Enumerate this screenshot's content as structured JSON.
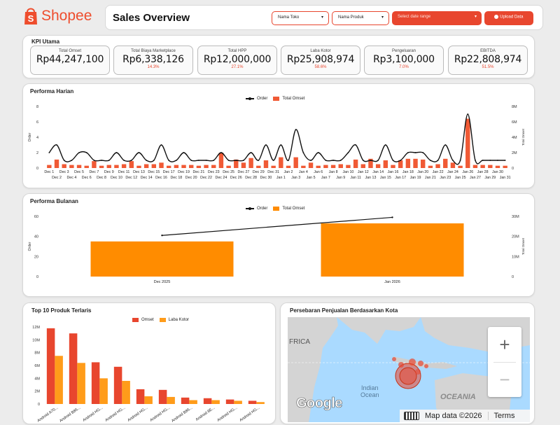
{
  "header": {
    "brand": "Shopee",
    "title": "Sales Overview",
    "filters": {
      "store": "Nama Toko",
      "product": "Nama Produk",
      "date": "Select date range",
      "upload": "Upload Data"
    },
    "colors": {
      "brand": "#ee4d2d",
      "accent": "#f05a35",
      "orange": "#ff8c00"
    }
  },
  "kpi": {
    "title": "KPI Utama",
    "items": [
      {
        "label": "Total Omset",
        "value": "Rp44,247,100",
        "pct": ""
      },
      {
        "label": "Total Biaya Marketplace",
        "value": "Rp6,338,126",
        "pct": "14.3%"
      },
      {
        "label": "Total HPP",
        "value": "Rp12,000,000",
        "pct": "27.1%"
      },
      {
        "label": "Laba Kotor",
        "value": "Rp25,908,974",
        "pct": "58.6%"
      },
      {
        "label": "Pengeluaran",
        "value": "Rp3,100,000",
        "pct": "7.0%"
      },
      {
        "label": "EBITDA",
        "value": "Rp22,808,974",
        "pct": "51.5%"
      }
    ]
  },
  "harian": {
    "title": "Performa Harian",
    "legend_order": "Order",
    "legend_omset": "Total Omset",
    "ylabel": "Order",
    "y2label": "Total Omset"
  },
  "bulanan": {
    "title": "Performa Bulanan",
    "legend_order": "Order",
    "legend_omset": "Total Omset",
    "ylabel": "Order",
    "y2label": "Total Omset"
  },
  "top10": {
    "title": "Top 10 Produk Terlaris",
    "legend_omset": "Omset",
    "legend_laba": "Laba Kotor"
  },
  "map": {
    "title": "Persebaran Penjualan Berdasarkan Kota",
    "labels": {
      "africa": "FRICA",
      "ocean": "Indian\nOcean",
      "oceania": "OCEANIA"
    },
    "google": "Google",
    "attribution": "Map data ©2026",
    "terms": "Terms",
    "zoom_in": "+",
    "zoom_out": "−"
  },
  "chart_data": [
    {
      "type": "bar",
      "title": "Performa Harian",
      "ylabel": "Order",
      "y2label": "Total Omset",
      "ylim": [
        0,
        8
      ],
      "y2lim": [
        0,
        8000000
      ],
      "yticks": [
        "0",
        "2",
        "4",
        "6",
        "8"
      ],
      "y2ticks": [
        "0",
        "2M",
        "4M",
        "6M",
        "8M"
      ],
      "categories": [
        "Dec 1",
        "Dec 2",
        "Dec 3",
        "Dec 4",
        "Dec 5",
        "Dec 6",
        "Dec 7",
        "Dec 8",
        "Dec 9",
        "Dec 10",
        "Dec 11",
        "Dec 12",
        "Dec 13",
        "Dec 14",
        "Dec 15",
        "Dec 16",
        "Dec 17",
        "Dec 18",
        "Dec 19",
        "Dec 20",
        "Dec 21",
        "Dec 22",
        "Dec 23",
        "Dec 24",
        "Dec 25",
        "Dec 26",
        "Dec 27",
        "Dec 28",
        "Dec 29",
        "Dec 30",
        "Dec 31",
        "Jan 1",
        "Jan 2",
        "Jan 3",
        "Jan 4",
        "Jan 5",
        "Jan 6",
        "Jan 7",
        "Jan 8",
        "Jan 9",
        "Jan 10",
        "Jan 11",
        "Jan 12",
        "Jan 13",
        "Jan 14",
        "Jan 15",
        "Jan 16",
        "Jan 17",
        "Jan 18",
        "Jan 19",
        "Jan 20",
        "Jan 21",
        "Jan 22",
        "Jan 23",
        "Jan 24",
        "Jan 25",
        "Jan 26",
        "Jan 27",
        "Jan 28",
        "Jan 29",
        "Jan 30",
        "Jan 31"
      ],
      "series": [
        {
          "name": "Total Omset",
          "kind": "bar",
          "axis": "right",
          "values": [
            400000,
            1100000,
            500000,
            400000,
            400000,
            300000,
            900000,
            300000,
            400000,
            400000,
            500000,
            900000,
            300000,
            500000,
            500000,
            700000,
            300000,
            400000,
            400000,
            400000,
            300000,
            400000,
            400000,
            2000000,
            300000,
            1100000,
            700000,
            1300000,
            300000,
            1000000,
            300000,
            1400000,
            300000,
            1400000,
            300000,
            700000,
            300000,
            400000,
            400000,
            500000,
            400000,
            1100000,
            500000,
            1200000,
            500000,
            1000000,
            400000,
            1000000,
            1200000,
            1200000,
            1100000,
            300000,
            500000,
            1200000,
            700000,
            300000,
            6400000,
            400000,
            400000,
            400000,
            300000,
            300000
          ]
        },
        {
          "name": "Order",
          "kind": "line",
          "axis": "left",
          "values": [
            2,
            3,
            1,
            1,
            2,
            2,
            1,
            1,
            1,
            2,
            1,
            1,
            2,
            1,
            1,
            3,
            1,
            1,
            2,
            1,
            1,
            1,
            1,
            2,
            1,
            1,
            1,
            2,
            1,
            3,
            1,
            3,
            1,
            5,
            2,
            1,
            2,
            1,
            1,
            1,
            2,
            3,
            1,
            1,
            1,
            3,
            1,
            1,
            2,
            2,
            2,
            1,
            1,
            3,
            1,
            1,
            7,
            1,
            1,
            1,
            1,
            1
          ]
        }
      ]
    },
    {
      "type": "bar",
      "title": "Performa Bulanan",
      "ylabel": "Order",
      "y2label": "Total Omset",
      "ylim": [
        0,
        60
      ],
      "y2lim": [
        0,
        30000000
      ],
      "yticks": [
        "0",
        "20",
        "40",
        "60"
      ],
      "y2ticks": [
        "0",
        "10M",
        "20M",
        "30M"
      ],
      "categories": [
        "Dec 2025",
        "Jan 2026"
      ],
      "series": [
        {
          "name": "Total Omset",
          "kind": "bar",
          "axis": "right",
          "values": [
            17500000,
            26500000
          ]
        },
        {
          "name": "Order",
          "kind": "line",
          "axis": "left",
          "values": [
            41,
            59
          ]
        }
      ]
    },
    {
      "type": "bar",
      "title": "Top 10 Produk Terlaris",
      "ylim": [
        0,
        12000000
      ],
      "yticks": [
        "0",
        "2M",
        "4M",
        "6M",
        "8M",
        "10M",
        "12M"
      ],
      "categories": [
        "Android A70...",
        "Android B86...",
        "Android HG...",
        "Android HG...",
        "Android HG...",
        "Android HG...",
        "Android B86...",
        "Android 8E...",
        "Android HG...",
        "Android HG..."
      ],
      "series": [
        {
          "name": "Omset",
          "values": [
            11800000,
            11000000,
            6500000,
            5800000,
            2300000,
            2200000,
            1000000,
            900000,
            700000,
            500000
          ]
        },
        {
          "name": "Laba Kotor",
          "values": [
            7500000,
            6400000,
            4000000,
            3600000,
            1200000,
            1100000,
            600000,
            600000,
            500000,
            300000
          ]
        }
      ]
    }
  ]
}
